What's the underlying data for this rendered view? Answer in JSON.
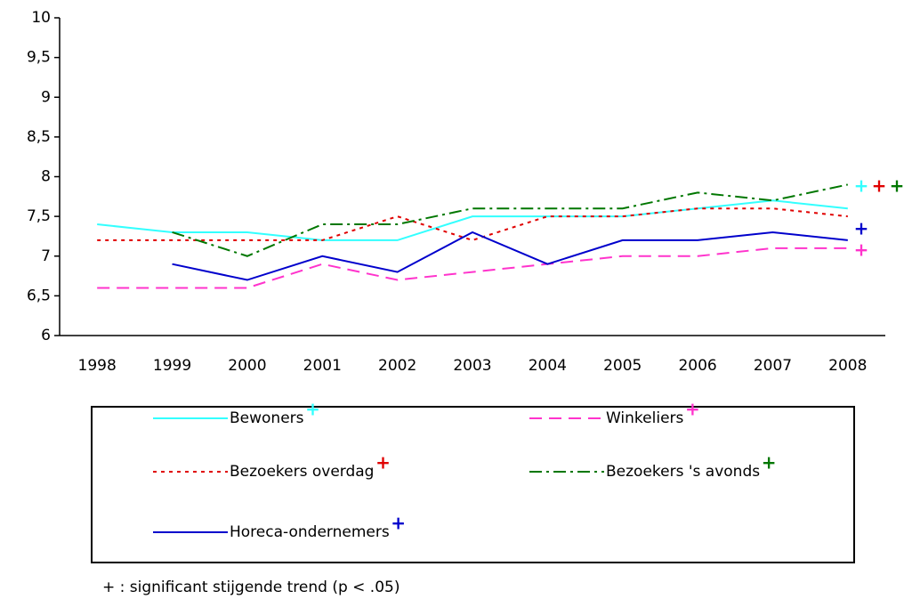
{
  "chart_data": {
    "type": "line",
    "categories": [
      "1998",
      "1999",
      "2000",
      "2001",
      "2002",
      "2003",
      "2004",
      "2005",
      "2006",
      "2007",
      "2008"
    ],
    "ylim": [
      6,
      10
    ],
    "yticks": [
      6,
      {
        "value": 6.5,
        "label": "6,5"
      },
      7,
      {
        "value": 7.5,
        "label": "7,5"
      },
      8,
      {
        "value": 8.5,
        "label": "8,5"
      },
      9,
      {
        "value": 9.5,
        "label": "9,5"
      },
      10
    ],
    "grid": false,
    "series": [
      {
        "name": "Bewoners",
        "color": "#33ffff",
        "dash": "solid",
        "trend_marker": "+",
        "values": [
          7.4,
          7.3,
          7.3,
          7.2,
          7.2,
          7.5,
          7.5,
          7.5,
          7.6,
          7.7,
          7.6
        ]
      },
      {
        "name": "Winkeliers",
        "color": "#ff33cc",
        "dash": "dashed",
        "trend_marker": "+",
        "values": [
          6.6,
          6.6,
          6.6,
          6.9,
          6.7,
          6.8,
          6.9,
          7.0,
          7.0,
          7.1,
          7.1
        ]
      },
      {
        "name": "Bezoekers overdag",
        "color": "#e00000",
        "dash": "dotted",
        "trend_marker": "+",
        "values": [
          7.2,
          7.2,
          7.2,
          7.2,
          7.5,
          7.2,
          7.5,
          7.5,
          7.6,
          7.6,
          7.5
        ]
      },
      {
        "name": "Bezoekers 's avonds",
        "color": "#007700",
        "dash": "dashdot",
        "trend_marker": "+",
        "values": [
          null,
          7.3,
          7.0,
          7.4,
          7.4,
          7.6,
          7.6,
          7.6,
          7.8,
          7.7,
          7.9
        ]
      },
      {
        "name": "Horeca-ondernemers",
        "color": "#0000cc",
        "dash": "solid",
        "trend_marker": "+",
        "values": [
          null,
          6.9,
          6.7,
          7.0,
          6.8,
          7.3,
          6.9,
          7.2,
          7.2,
          7.3,
          7.2
        ]
      }
    ],
    "footnote": "+ : significant stijgende trend (p < .05)"
  }
}
